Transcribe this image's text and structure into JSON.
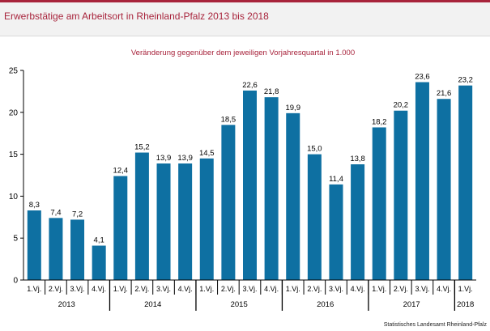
{
  "title": "Erwerbstätige am Arbeitsort in Rheinland-Pfalz 2013 bis 2018",
  "footer": "Statistisches Landesamt Rheinland-Pfalz",
  "colors": {
    "bar": "#0e70a2",
    "accent": "#a8243c",
    "axis": "#000000"
  },
  "chart_data": {
    "type": "bar",
    "title": "Veränderung gegenüber dem jeweiligen Vorjahresquartal in 1.000",
    "xlabel": "",
    "ylabel": "",
    "ylim": [
      0,
      25
    ],
    "yticks": [
      0,
      5,
      10,
      15,
      20,
      25
    ],
    "grid": false,
    "categories": [
      "1.Vj.",
      "2.Vj.",
      "3.Vj.",
      "4.Vj.",
      "1.Vj.",
      "2.Vj.",
      "3.Vj.",
      "4.Vj.",
      "1.Vj.",
      "2.Vj.",
      "3.Vj.",
      "4.Vj.",
      "1.Vj.",
      "2.Vj.",
      "3.Vj.",
      "4.Vj.",
      "1.Vj.",
      "2.Vj.",
      "3.Vj.",
      "4.Vj.",
      "1.Vj."
    ],
    "values": [
      8.3,
      7.4,
      7.2,
      4.1,
      12.4,
      15.2,
      13.9,
      13.9,
      14.5,
      18.5,
      22.6,
      21.8,
      19.9,
      15.0,
      11.4,
      13.8,
      18.2,
      20.2,
      23.6,
      21.6,
      23.2
    ],
    "value_labels": [
      "8,3",
      "7,4",
      "7,2",
      "4,1",
      "12,4",
      "15,2",
      "13,9",
      "13,9",
      "14,5",
      "18,5",
      "22,6",
      "21,8",
      "19,9",
      "15,0",
      "11,4",
      "13,8",
      "18,2",
      "20,2",
      "23,6",
      "21,6",
      "23,2"
    ],
    "years": [
      {
        "label": "2013",
        "count": 4
      },
      {
        "label": "2014",
        "count": 4
      },
      {
        "label": "2015",
        "count": 4
      },
      {
        "label": "2016",
        "count": 4
      },
      {
        "label": "2017",
        "count": 4
      },
      {
        "label": "2018",
        "count": 1
      }
    ]
  }
}
